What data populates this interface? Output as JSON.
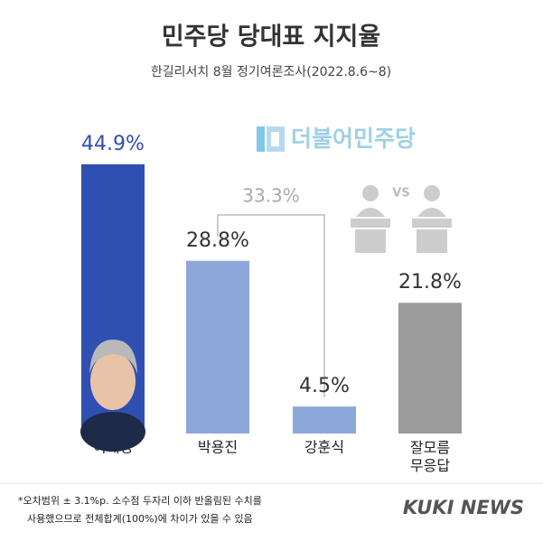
{
  "chart_data": {
    "type": "bar",
    "title": "민주당 당대표 지지율",
    "subtitle": "한길리서치 8월 정기여론조사(2022.8.6~8)",
    "categories": [
      "이재명",
      "박용진",
      "강훈식",
      "잘모름\n무응답"
    ],
    "values": [
      44.9,
      28.8,
      4.5,
      21.8
    ],
    "value_labels": [
      "44.9%",
      "28.8%",
      "4.5%",
      "21.8%"
    ],
    "colors": [
      "#2f4fb3",
      "#8ea8da",
      "#8ea8da",
      "#9b9b9b"
    ],
    "annotations": [
      "33.3%"
    ],
    "logo": "더불어민주당",
    "vs": "VS",
    "footnote": [
      "*오차범위 ± 3.1%p. 소수점 두자리 이하 반올림된 수치를",
      "사용했으므로 전체합계(100%)에 차이가 있을 수 있음"
    ],
    "source": "KUKI NEWS"
  }
}
